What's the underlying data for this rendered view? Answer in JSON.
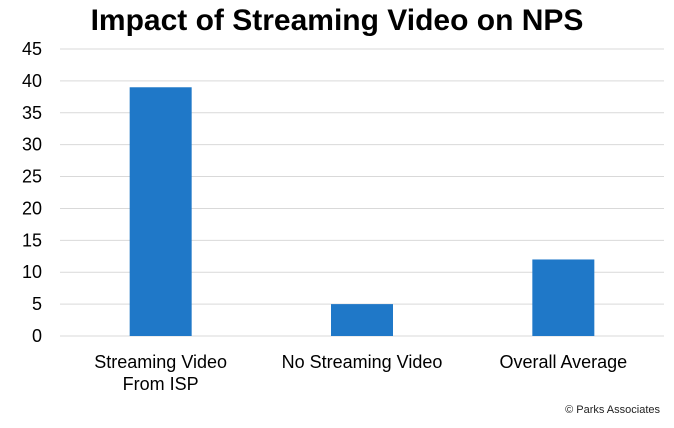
{
  "chart_data": {
    "type": "bar",
    "title": "Impact of Streaming Video on NPS",
    "categories": [
      [
        "Streaming Video",
        "From ISP"
      ],
      [
        "No Streaming Video"
      ],
      [
        "Overall Average"
      ]
    ],
    "values": [
      39,
      5,
      12
    ],
    "ylim": [
      0,
      45
    ],
    "yticks": [
      0,
      5,
      10,
      15,
      20,
      25,
      30,
      35,
      40,
      45
    ],
    "grid": true,
    "bar_color": "#1F78C8",
    "grid_color": "#D9D9D9"
  },
  "footer": {
    "copyright": "© Parks Associates"
  }
}
